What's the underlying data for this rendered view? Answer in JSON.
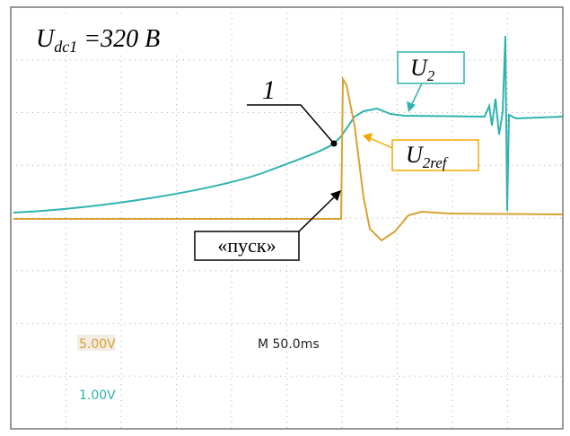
{
  "header": {
    "symbol": "U",
    "subscript": "dc1",
    "rest": " =320 В"
  },
  "labels": {
    "marker": "1",
    "u2": {
      "symbol": "U",
      "subscript": "2"
    },
    "u2ref": {
      "symbol": "U",
      "subscript": "2ref"
    },
    "start": "«пуск»"
  },
  "readouts": {
    "ch1": "5.00V",
    "time": "M 50.0ms",
    "ch2": "1.00V"
  }
}
